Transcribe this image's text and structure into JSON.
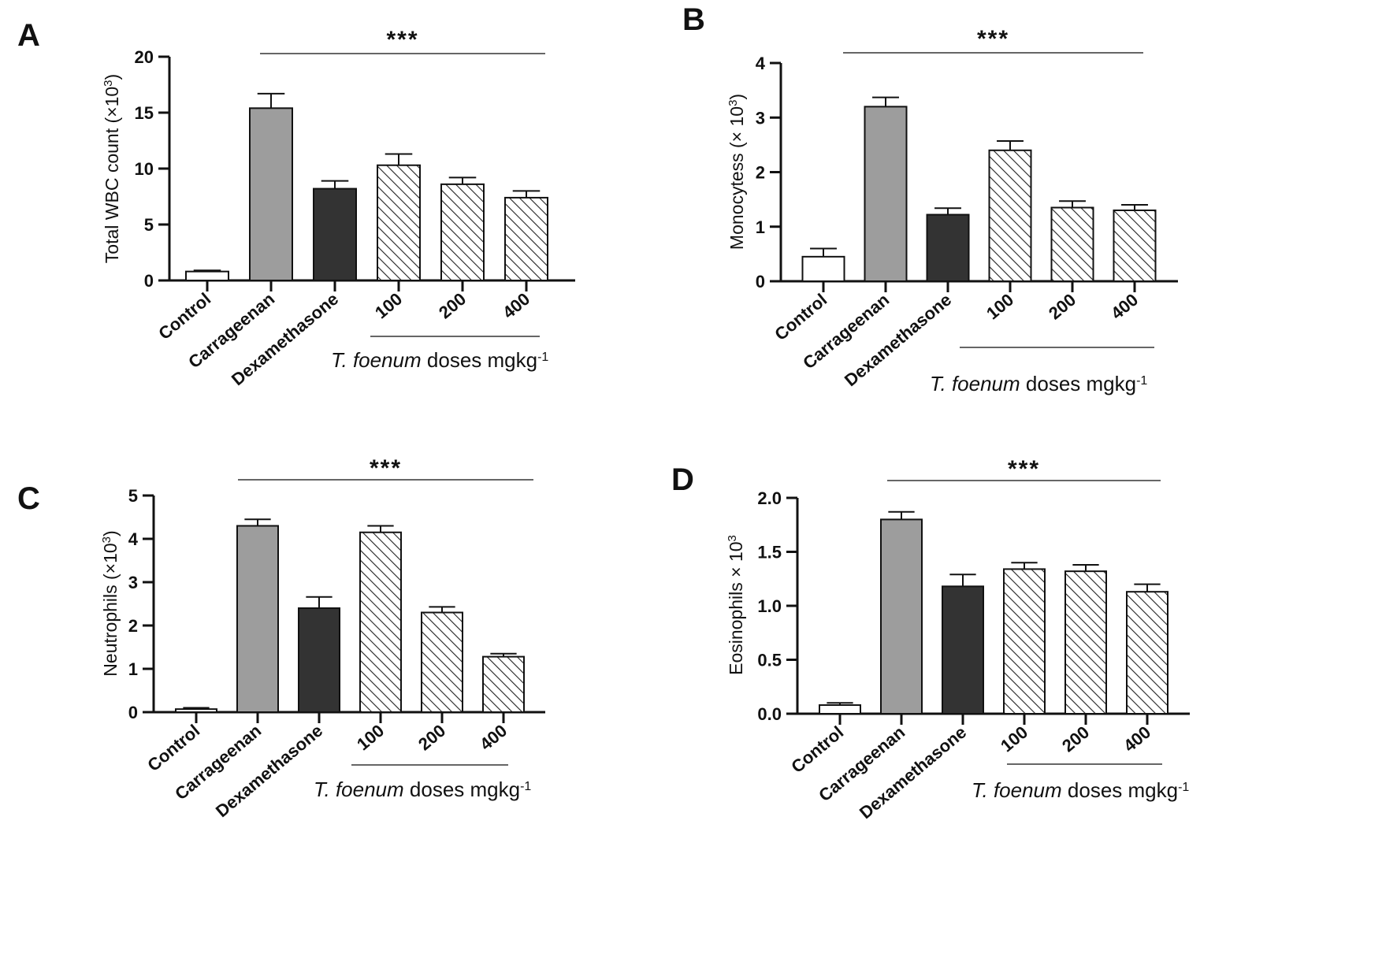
{
  "colors": {
    "control": "#ffffff",
    "carrageenan": "#9d9d9d",
    "dexamethasone": "#333333",
    "hatch": "#222222",
    "axis": "#111111"
  },
  "chart_data": [
    {
      "panel": "A",
      "type": "bar",
      "ylabel": "Total WBC count (×10",
      "ylabel_sup": "3",
      "ylabel_end": ")",
      "ylim": [
        0,
        20
      ],
      "yticks": [
        "0",
        "5",
        "10",
        "15",
        "20"
      ],
      "categories": [
        "Control",
        "Carrageenan",
        "Dexamethasone",
        "100",
        "200",
        "400"
      ],
      "values": [
        0.8,
        15.4,
        8.2,
        10.3,
        8.6,
        7.4
      ],
      "errors": [
        0.1,
        1.3,
        0.7,
        1.0,
        0.6,
        0.6
      ],
      "significance": "***",
      "group_label": {
        "italic": "T. foenum",
        "text": " doses mgkg",
        "sup": "-1"
      }
    },
    {
      "panel": "B",
      "type": "bar",
      "ylabel": "Monocytess (× 10",
      "ylabel_sup": "3",
      "ylabel_end": ")",
      "ylim": [
        0,
        4
      ],
      "yticks": [
        "0",
        "1",
        "2",
        "3",
        "4"
      ],
      "categories": [
        "Control",
        "Carrageenan",
        "Dexamethasone",
        "100",
        "200",
        "400"
      ],
      "values": [
        0.45,
        3.2,
        1.22,
        2.4,
        1.35,
        1.3
      ],
      "errors": [
        0.15,
        0.17,
        0.12,
        0.17,
        0.12,
        0.1
      ],
      "significance": "***",
      "group_label": {
        "italic": "T. foenum",
        "text": " doses mgkg",
        "sup": "-1"
      }
    },
    {
      "panel": "C",
      "type": "bar",
      "ylabel": "Neutrophils (×10",
      "ylabel_sup": "3",
      "ylabel_end": ")",
      "ylim": [
        0,
        5
      ],
      "yticks": [
        "0",
        "1",
        "2",
        "3",
        "4",
        "5"
      ],
      "categories": [
        "Control",
        "Carrageenan",
        "Dexamethasone",
        "100",
        "200",
        "400"
      ],
      "values": [
        0.07,
        4.3,
        2.4,
        4.15,
        2.3,
        1.28
      ],
      "errors": [
        0.03,
        0.15,
        0.26,
        0.15,
        0.13,
        0.07
      ],
      "significance": "***",
      "group_label": {
        "italic": "T. foenum",
        "text": " doses mgkg",
        "sup": "-1"
      }
    },
    {
      "panel": "D",
      "type": "bar",
      "ylabel": "Eosinophils × 10",
      "ylabel_sup": "3",
      "ylabel_end": "",
      "ylim": [
        0,
        2.0
      ],
      "yticks": [
        "0.0",
        "0.5",
        "1.0",
        "1.5",
        "2.0"
      ],
      "categories": [
        "Control",
        "Carrageenan",
        "Dexamethasone",
        "100",
        "200",
        "400"
      ],
      "values": [
        0.08,
        1.8,
        1.18,
        1.34,
        1.32,
        1.13
      ],
      "errors": [
        0.02,
        0.07,
        0.11,
        0.06,
        0.06,
        0.07
      ],
      "significance": "***",
      "group_label": {
        "italic": "T. foenum",
        "text": " doses mgkg",
        "sup": "-1"
      }
    }
  ]
}
